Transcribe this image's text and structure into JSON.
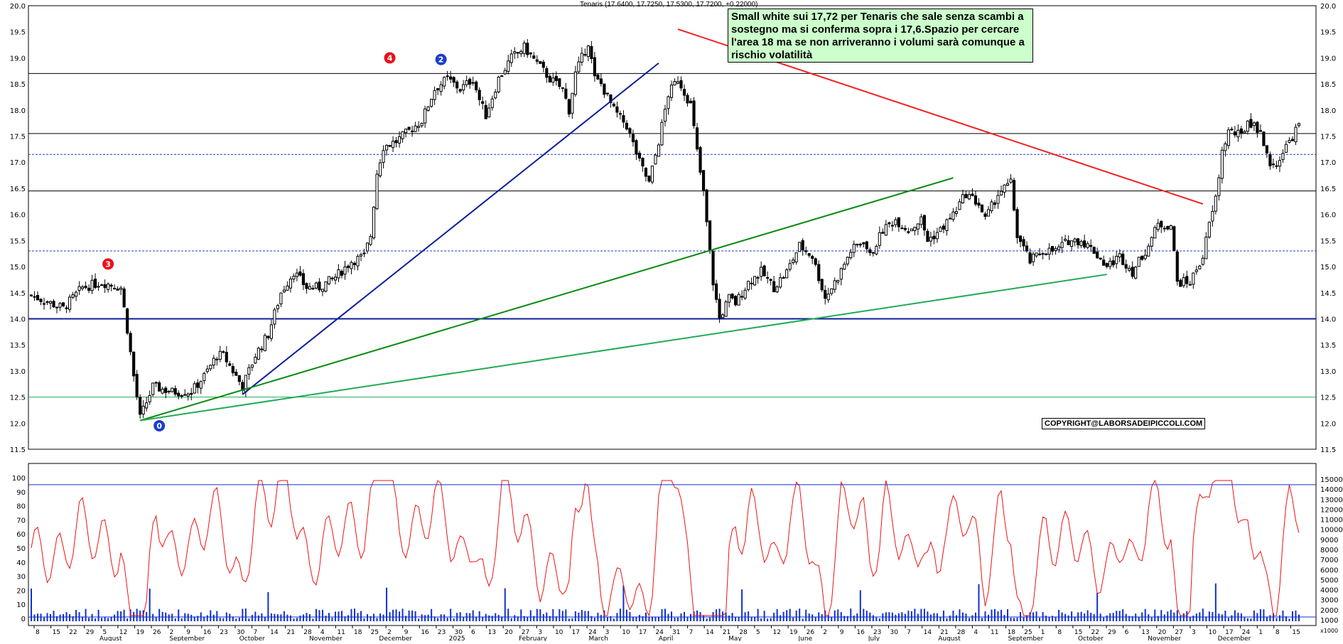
{
  "header": {
    "quote": "Tenaris (17.6400, 17.7250, 17.5300, 17.7200, +0.22000)"
  },
  "annotation": {
    "text": "Small white sui 17,72 per Tenaris che sale senza scambi a sostegno ma si conferma sopra i 17,6.Spazio per cercare l'area 18 ma se non arriveranno i volumi sarà comunque a rischio volatilità",
    "copyright": "COPYRIGHT@LABORSADEIPICCOLI.COM"
  },
  "markers": [
    {
      "label": "4",
      "color": "#e8121c"
    },
    {
      "label": "2",
      "color": "#1a3ecc"
    },
    {
      "label": "3",
      "color": "#e8121c"
    },
    {
      "label": "0",
      "color": "#1a3ecc"
    }
  ],
  "chart_data": [
    {
      "type": "candlestick",
      "title": "Tenaris",
      "ylim": [
        11.5,
        20.0
      ],
      "y_ticks": [
        "20.0",
        "19.5",
        "19.0",
        "18.5",
        "18.0",
        "17.5",
        "17.0",
        "16.5",
        "16.0",
        "15.5",
        "15.0",
        "14.5",
        "14.0",
        "13.5",
        "13.0",
        "12.5",
        "12.0",
        "11.5"
      ],
      "last": {
        "open": 17.64,
        "high": 17.725,
        "low": 17.53,
        "close": 17.72,
        "change": 0.22
      },
      "horizontal_levels": [
        18.7,
        17.55,
        17.15,
        16.45,
        15.3,
        14.0,
        12.5
      ],
      "price_path": [
        [
          0,
          14.45
        ],
        [
          10,
          14.2
        ],
        [
          16,
          14.6
        ],
        [
          22,
          14.7
        ],
        [
          28,
          14.6
        ],
        [
          30,
          13.8
        ],
        [
          32,
          12.9
        ],
        [
          34,
          12.1
        ],
        [
          38,
          12.7
        ],
        [
          44,
          12.6
        ],
        [
          50,
          12.6
        ],
        [
          54,
          12.9
        ],
        [
          58,
          13.3
        ],
        [
          60,
          13.3
        ],
        [
          64,
          12.9
        ],
        [
          66,
          12.7
        ],
        [
          70,
          13.3
        ],
        [
          74,
          13.7
        ],
        [
          78,
          14.5
        ],
        [
          82,
          14.9
        ],
        [
          86,
          14.6
        ],
        [
          90,
          14.6
        ],
        [
          95,
          14.8
        ],
        [
          100,
          15.1
        ],
        [
          104,
          15.2
        ],
        [
          106,
          15.6
        ],
        [
          108,
          16.8
        ],
        [
          110,
          17.3
        ],
        [
          114,
          17.4
        ],
        [
          118,
          17.6
        ],
        [
          122,
          17.8
        ],
        [
          126,
          18.4
        ],
        [
          130,
          18.6
        ],
        [
          134,
          18.4
        ],
        [
          138,
          18.6
        ],
        [
          140,
          18.2
        ],
        [
          142,
          17.9
        ],
        [
          146,
          18.6
        ],
        [
          150,
          19.0
        ],
        [
          154,
          19.2
        ],
        [
          158,
          18.9
        ],
        [
          162,
          18.6
        ],
        [
          166,
          18.4
        ],
        [
          168,
          18.0
        ],
        [
          170,
          18.7
        ],
        [
          174,
          19.3
        ],
        [
          176,
          18.6
        ],
        [
          178,
          18.5
        ],
        [
          182,
          18.0
        ],
        [
          186,
          17.7
        ],
        [
          190,
          17.0
        ],
        [
          193,
          16.6
        ],
        [
          196,
          17.4
        ],
        [
          199,
          18.3
        ],
        [
          202,
          18.6
        ],
        [
          206,
          18.1
        ],
        [
          208,
          17.2
        ],
        [
          210,
          16.4
        ],
        [
          213,
          14.7
        ],
        [
          215,
          14.0
        ],
        [
          218,
          14.4
        ],
        [
          220,
          14.3
        ],
        [
          224,
          14.7
        ],
        [
          228,
          14.9
        ],
        [
          232,
          14.6
        ],
        [
          236,
          14.9
        ],
        [
          240,
          15.4
        ],
        [
          244,
          15.2
        ],
        [
          248,
          14.4
        ],
        [
          252,
          14.8
        ],
        [
          256,
          15.3
        ],
        [
          260,
          15.5
        ],
        [
          262,
          15.2
        ],
        [
          266,
          15.7
        ],
        [
          270,
          15.9
        ],
        [
          274,
          15.7
        ],
        [
          278,
          15.9
        ],
        [
          280,
          15.5
        ],
        [
          284,
          15.7
        ],
        [
          288,
          16.0
        ],
        [
          292,
          16.4
        ],
        [
          296,
          16.2
        ],
        [
          298,
          15.9
        ],
        [
          302,
          16.4
        ],
        [
          306,
          16.6
        ],
        [
          308,
          15.6
        ],
        [
          312,
          15.1
        ],
        [
          316,
          15.3
        ],
        [
          320,
          15.3
        ],
        [
          324,
          15.5
        ],
        [
          328,
          15.5
        ],
        [
          332,
          15.3
        ],
        [
          336,
          15.0
        ],
        [
          340,
          15.2
        ],
        [
          344,
          14.9
        ],
        [
          348,
          15.3
        ],
        [
          352,
          15.8
        ],
        [
          356,
          15.8
        ],
        [
          358,
          14.7
        ],
        [
          362,
          14.7
        ],
        [
          366,
          15.2
        ],
        [
          368,
          15.8
        ],
        [
          370,
          16.3
        ],
        [
          372,
          17.2
        ],
        [
          374,
          17.6
        ],
        [
          378,
          17.5
        ],
        [
          380,
          17.8
        ],
        [
          384,
          17.6
        ],
        [
          386,
          17.1
        ],
        [
          388,
          16.9
        ],
        [
          392,
          17.3
        ],
        [
          394,
          17.5
        ],
        [
          396,
          17.72
        ]
      ],
      "trendlines": [
        {
          "color": "#0d1f99",
          "from": [
            66,
            12.55
          ],
          "to": [
            196,
            18.9
          ]
        },
        {
          "color": "#0a8a10",
          "from": [
            34,
            12.05
          ],
          "to": [
            288,
            16.7
          ]
        },
        {
          "color": "#22aa55",
          "from": [
            34,
            12.05
          ],
          "to": [
            336,
            14.85
          ]
        },
        {
          "color": "#ee2222",
          "from": [
            202,
            19.55
          ],
          "to": [
            366,
            16.2
          ]
        }
      ]
    },
    {
      "type": "line",
      "title": "",
      "ylim": [
        0,
        100
      ],
      "left_ticks": [
        "100",
        "90",
        "80",
        "70",
        "60",
        "50",
        "40",
        "30",
        "20",
        "10",
        "0"
      ],
      "right_ticks": [
        "15000",
        "14000",
        "13000",
        "12000",
        "11000",
        "10000",
        "9000",
        "8000",
        "7000",
        "6000",
        "5000",
        "4000",
        "3000",
        "2000",
        "1000"
      ],
      "right_unit": "x1000"
    }
  ],
  "x_axis": {
    "day_ticks": [
      "8",
      "15",
      "22",
      "29",
      "5",
      "12",
      "19",
      "26",
      "2",
      "9",
      "16",
      "23",
      "30",
      "7",
      "14",
      "21",
      "28",
      "4",
      "11",
      "18",
      "25",
      "2",
      "9",
      "16",
      "23",
      "30",
      "6",
      "13",
      "20",
      "27",
      "3",
      "10",
      "17",
      "24",
      "3",
      "10",
      "17",
      "24",
      "31",
      "7",
      "14",
      "21",
      "28",
      "5",
      "12",
      "19",
      "26",
      "2",
      "9",
      "16",
      "23",
      "30",
      "7",
      "14",
      "21",
      "28",
      "4",
      "11",
      "18",
      "25",
      "1",
      "8",
      "15",
      "22",
      "29",
      "6",
      "13",
      "20",
      "27",
      "3",
      "10",
      "17",
      "24",
      "1",
      "8",
      "15"
    ],
    "months": [
      "August",
      "September",
      "October",
      "November",
      "December",
      "2025",
      "February",
      "March",
      "April",
      "May",
      "June",
      "July",
      "August",
      "September",
      "October",
      "November",
      "December"
    ]
  },
  "colors": {
    "bull": "#ffffff",
    "bear": "#000000",
    "rsi": "#ee1111",
    "volume": "#1030cc",
    "level": "#000000"
  }
}
